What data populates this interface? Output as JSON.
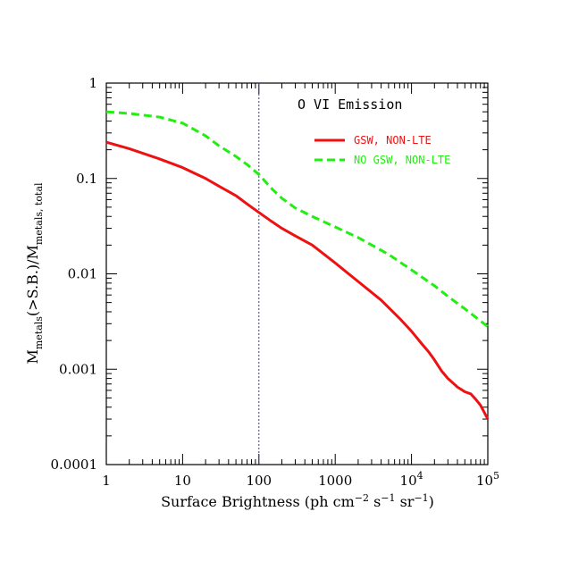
{
  "chart_data": {
    "type": "line",
    "title": "O VI Emission",
    "xlabel_parts": {
      "main": "Surface Brightness (ph cm",
      "sup1": "−2",
      "mid1": " s",
      "sup2": "−1",
      "mid2": " sr",
      "sup3": "−1",
      "end": ")"
    },
    "ylabel_parts": {
      "m1": "M",
      "sub1": "metals",
      "mid": "(>S.B.)/M",
      "sub2": "metals, total"
    },
    "xscale": "log",
    "yscale": "log",
    "xlim": [
      1,
      100000
    ],
    "ylim": [
      0.0001,
      1
    ],
    "x_tick_labels": [
      {
        "value": 1,
        "base": "1",
        "exp": ""
      },
      {
        "value": 10,
        "base": "10",
        "exp": ""
      },
      {
        "value": 100,
        "base": "100",
        "exp": ""
      },
      {
        "value": 1000,
        "base": "1000",
        "exp": ""
      },
      {
        "value": 10000,
        "base": "10",
        "exp": "4"
      },
      {
        "value": 100000,
        "base": "10",
        "exp": "5"
      }
    ],
    "y_tick_labels": [
      {
        "value": 1,
        "label": "1"
      },
      {
        "value": 0.1,
        "label": "0.1"
      },
      {
        "value": 0.01,
        "label": "0.01"
      },
      {
        "value": 0.001,
        "label": "0.001"
      },
      {
        "value": 0.0001,
        "label": "0.0001"
      }
    ],
    "vline": {
      "x": 100,
      "color": "#3333cc"
    },
    "legend_position": "top-right",
    "series": [
      {
        "name": "GSW, NON-LTE",
        "color": "#ee1111",
        "dash": "solid",
        "x": [
          1,
          2,
          5,
          10,
          20,
          30,
          50,
          70,
          100,
          150,
          200,
          300,
          500,
          1000,
          2000,
          4000,
          7000,
          10000,
          14000,
          17000,
          20000,
          25000,
          30000,
          40000,
          50000,
          60000,
          70000,
          80000,
          100000
        ],
        "y": [
          0.24,
          0.205,
          0.16,
          0.13,
          0.1,
          0.083,
          0.066,
          0.054,
          0.044,
          0.035,
          0.03,
          0.025,
          0.02,
          0.013,
          0.0083,
          0.0053,
          0.0034,
          0.0025,
          0.0018,
          0.0015,
          0.00125,
          0.00095,
          0.0008,
          0.00065,
          0.00058,
          0.00055,
          0.00048,
          0.00042,
          0.0003
        ]
      },
      {
        "name": "NO GSW, NON-LTE",
        "color": "#22ee11",
        "dash": "dashed",
        "x": [
          1,
          2,
          5,
          10,
          20,
          30,
          50,
          70,
          100,
          150,
          200,
          300,
          500,
          1000,
          2000,
          5000,
          10000,
          20000,
          30000,
          50000,
          100000
        ],
        "y": [
          0.5,
          0.48,
          0.44,
          0.38,
          0.28,
          0.22,
          0.17,
          0.14,
          0.11,
          0.077,
          0.062,
          0.049,
          0.04,
          0.031,
          0.024,
          0.016,
          0.011,
          0.0075,
          0.0058,
          0.0043,
          0.0028
        ]
      }
    ]
  }
}
